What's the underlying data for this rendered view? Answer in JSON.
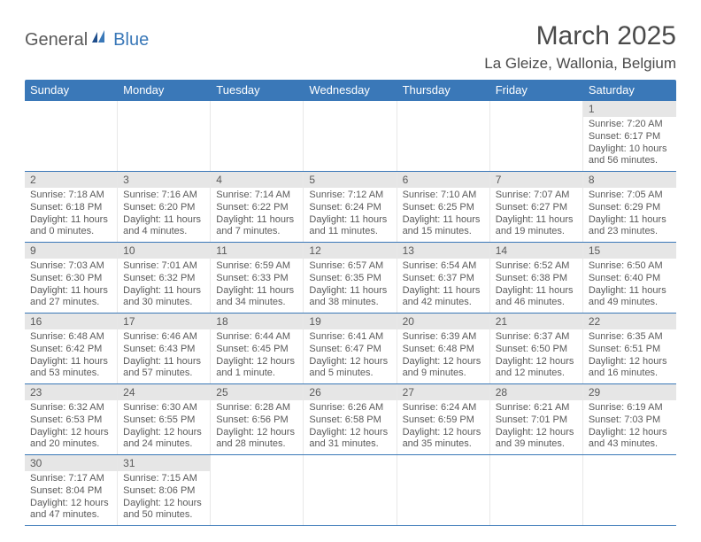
{
  "logo": {
    "text1": "General",
    "text2": "Blue"
  },
  "title": "March 2025",
  "location": "La Gleize, Wallonia, Belgium",
  "colors": {
    "header_bg": "#3a78b8",
    "daynum_bg": "#e6e6e6",
    "text": "#5a5a5a",
    "border": "#3a78b8"
  },
  "dayNames": [
    "Sunday",
    "Monday",
    "Tuesday",
    "Wednesday",
    "Thursday",
    "Friday",
    "Saturday"
  ],
  "weeks": [
    [
      null,
      null,
      null,
      null,
      null,
      null,
      {
        "n": "1",
        "sr": "Sunrise: 7:20 AM",
        "ss": "Sunset: 6:17 PM",
        "dl1": "Daylight: 10 hours",
        "dl2": "and 56 minutes."
      }
    ],
    [
      {
        "n": "2",
        "sr": "Sunrise: 7:18 AM",
        "ss": "Sunset: 6:18 PM",
        "dl1": "Daylight: 11 hours",
        "dl2": "and 0 minutes."
      },
      {
        "n": "3",
        "sr": "Sunrise: 7:16 AM",
        "ss": "Sunset: 6:20 PM",
        "dl1": "Daylight: 11 hours",
        "dl2": "and 4 minutes."
      },
      {
        "n": "4",
        "sr": "Sunrise: 7:14 AM",
        "ss": "Sunset: 6:22 PM",
        "dl1": "Daylight: 11 hours",
        "dl2": "and 7 minutes."
      },
      {
        "n": "5",
        "sr": "Sunrise: 7:12 AM",
        "ss": "Sunset: 6:24 PM",
        "dl1": "Daylight: 11 hours",
        "dl2": "and 11 minutes."
      },
      {
        "n": "6",
        "sr": "Sunrise: 7:10 AM",
        "ss": "Sunset: 6:25 PM",
        "dl1": "Daylight: 11 hours",
        "dl2": "and 15 minutes."
      },
      {
        "n": "7",
        "sr": "Sunrise: 7:07 AM",
        "ss": "Sunset: 6:27 PM",
        "dl1": "Daylight: 11 hours",
        "dl2": "and 19 minutes."
      },
      {
        "n": "8",
        "sr": "Sunrise: 7:05 AM",
        "ss": "Sunset: 6:29 PM",
        "dl1": "Daylight: 11 hours",
        "dl2": "and 23 minutes."
      }
    ],
    [
      {
        "n": "9",
        "sr": "Sunrise: 7:03 AM",
        "ss": "Sunset: 6:30 PM",
        "dl1": "Daylight: 11 hours",
        "dl2": "and 27 minutes."
      },
      {
        "n": "10",
        "sr": "Sunrise: 7:01 AM",
        "ss": "Sunset: 6:32 PM",
        "dl1": "Daylight: 11 hours",
        "dl2": "and 30 minutes."
      },
      {
        "n": "11",
        "sr": "Sunrise: 6:59 AM",
        "ss": "Sunset: 6:33 PM",
        "dl1": "Daylight: 11 hours",
        "dl2": "and 34 minutes."
      },
      {
        "n": "12",
        "sr": "Sunrise: 6:57 AM",
        "ss": "Sunset: 6:35 PM",
        "dl1": "Daylight: 11 hours",
        "dl2": "and 38 minutes."
      },
      {
        "n": "13",
        "sr": "Sunrise: 6:54 AM",
        "ss": "Sunset: 6:37 PM",
        "dl1": "Daylight: 11 hours",
        "dl2": "and 42 minutes."
      },
      {
        "n": "14",
        "sr": "Sunrise: 6:52 AM",
        "ss": "Sunset: 6:38 PM",
        "dl1": "Daylight: 11 hours",
        "dl2": "and 46 minutes."
      },
      {
        "n": "15",
        "sr": "Sunrise: 6:50 AM",
        "ss": "Sunset: 6:40 PM",
        "dl1": "Daylight: 11 hours",
        "dl2": "and 49 minutes."
      }
    ],
    [
      {
        "n": "16",
        "sr": "Sunrise: 6:48 AM",
        "ss": "Sunset: 6:42 PM",
        "dl1": "Daylight: 11 hours",
        "dl2": "and 53 minutes."
      },
      {
        "n": "17",
        "sr": "Sunrise: 6:46 AM",
        "ss": "Sunset: 6:43 PM",
        "dl1": "Daylight: 11 hours",
        "dl2": "and 57 minutes."
      },
      {
        "n": "18",
        "sr": "Sunrise: 6:44 AM",
        "ss": "Sunset: 6:45 PM",
        "dl1": "Daylight: 12 hours",
        "dl2": "and 1 minute."
      },
      {
        "n": "19",
        "sr": "Sunrise: 6:41 AM",
        "ss": "Sunset: 6:47 PM",
        "dl1": "Daylight: 12 hours",
        "dl2": "and 5 minutes."
      },
      {
        "n": "20",
        "sr": "Sunrise: 6:39 AM",
        "ss": "Sunset: 6:48 PM",
        "dl1": "Daylight: 12 hours",
        "dl2": "and 9 minutes."
      },
      {
        "n": "21",
        "sr": "Sunrise: 6:37 AM",
        "ss": "Sunset: 6:50 PM",
        "dl1": "Daylight: 12 hours",
        "dl2": "and 12 minutes."
      },
      {
        "n": "22",
        "sr": "Sunrise: 6:35 AM",
        "ss": "Sunset: 6:51 PM",
        "dl1": "Daylight: 12 hours",
        "dl2": "and 16 minutes."
      }
    ],
    [
      {
        "n": "23",
        "sr": "Sunrise: 6:32 AM",
        "ss": "Sunset: 6:53 PM",
        "dl1": "Daylight: 12 hours",
        "dl2": "and 20 minutes."
      },
      {
        "n": "24",
        "sr": "Sunrise: 6:30 AM",
        "ss": "Sunset: 6:55 PM",
        "dl1": "Daylight: 12 hours",
        "dl2": "and 24 minutes."
      },
      {
        "n": "25",
        "sr": "Sunrise: 6:28 AM",
        "ss": "Sunset: 6:56 PM",
        "dl1": "Daylight: 12 hours",
        "dl2": "and 28 minutes."
      },
      {
        "n": "26",
        "sr": "Sunrise: 6:26 AM",
        "ss": "Sunset: 6:58 PM",
        "dl1": "Daylight: 12 hours",
        "dl2": "and 31 minutes."
      },
      {
        "n": "27",
        "sr": "Sunrise: 6:24 AM",
        "ss": "Sunset: 6:59 PM",
        "dl1": "Daylight: 12 hours",
        "dl2": "and 35 minutes."
      },
      {
        "n": "28",
        "sr": "Sunrise: 6:21 AM",
        "ss": "Sunset: 7:01 PM",
        "dl1": "Daylight: 12 hours",
        "dl2": "and 39 minutes."
      },
      {
        "n": "29",
        "sr": "Sunrise: 6:19 AM",
        "ss": "Sunset: 7:03 PM",
        "dl1": "Daylight: 12 hours",
        "dl2": "and 43 minutes."
      }
    ],
    [
      {
        "n": "30",
        "sr": "Sunrise: 7:17 AM",
        "ss": "Sunset: 8:04 PM",
        "dl1": "Daylight: 12 hours",
        "dl2": "and 47 minutes."
      },
      {
        "n": "31",
        "sr": "Sunrise: 7:15 AM",
        "ss": "Sunset: 8:06 PM",
        "dl1": "Daylight: 12 hours",
        "dl2": "and 50 minutes."
      },
      null,
      null,
      null,
      null,
      null
    ]
  ]
}
